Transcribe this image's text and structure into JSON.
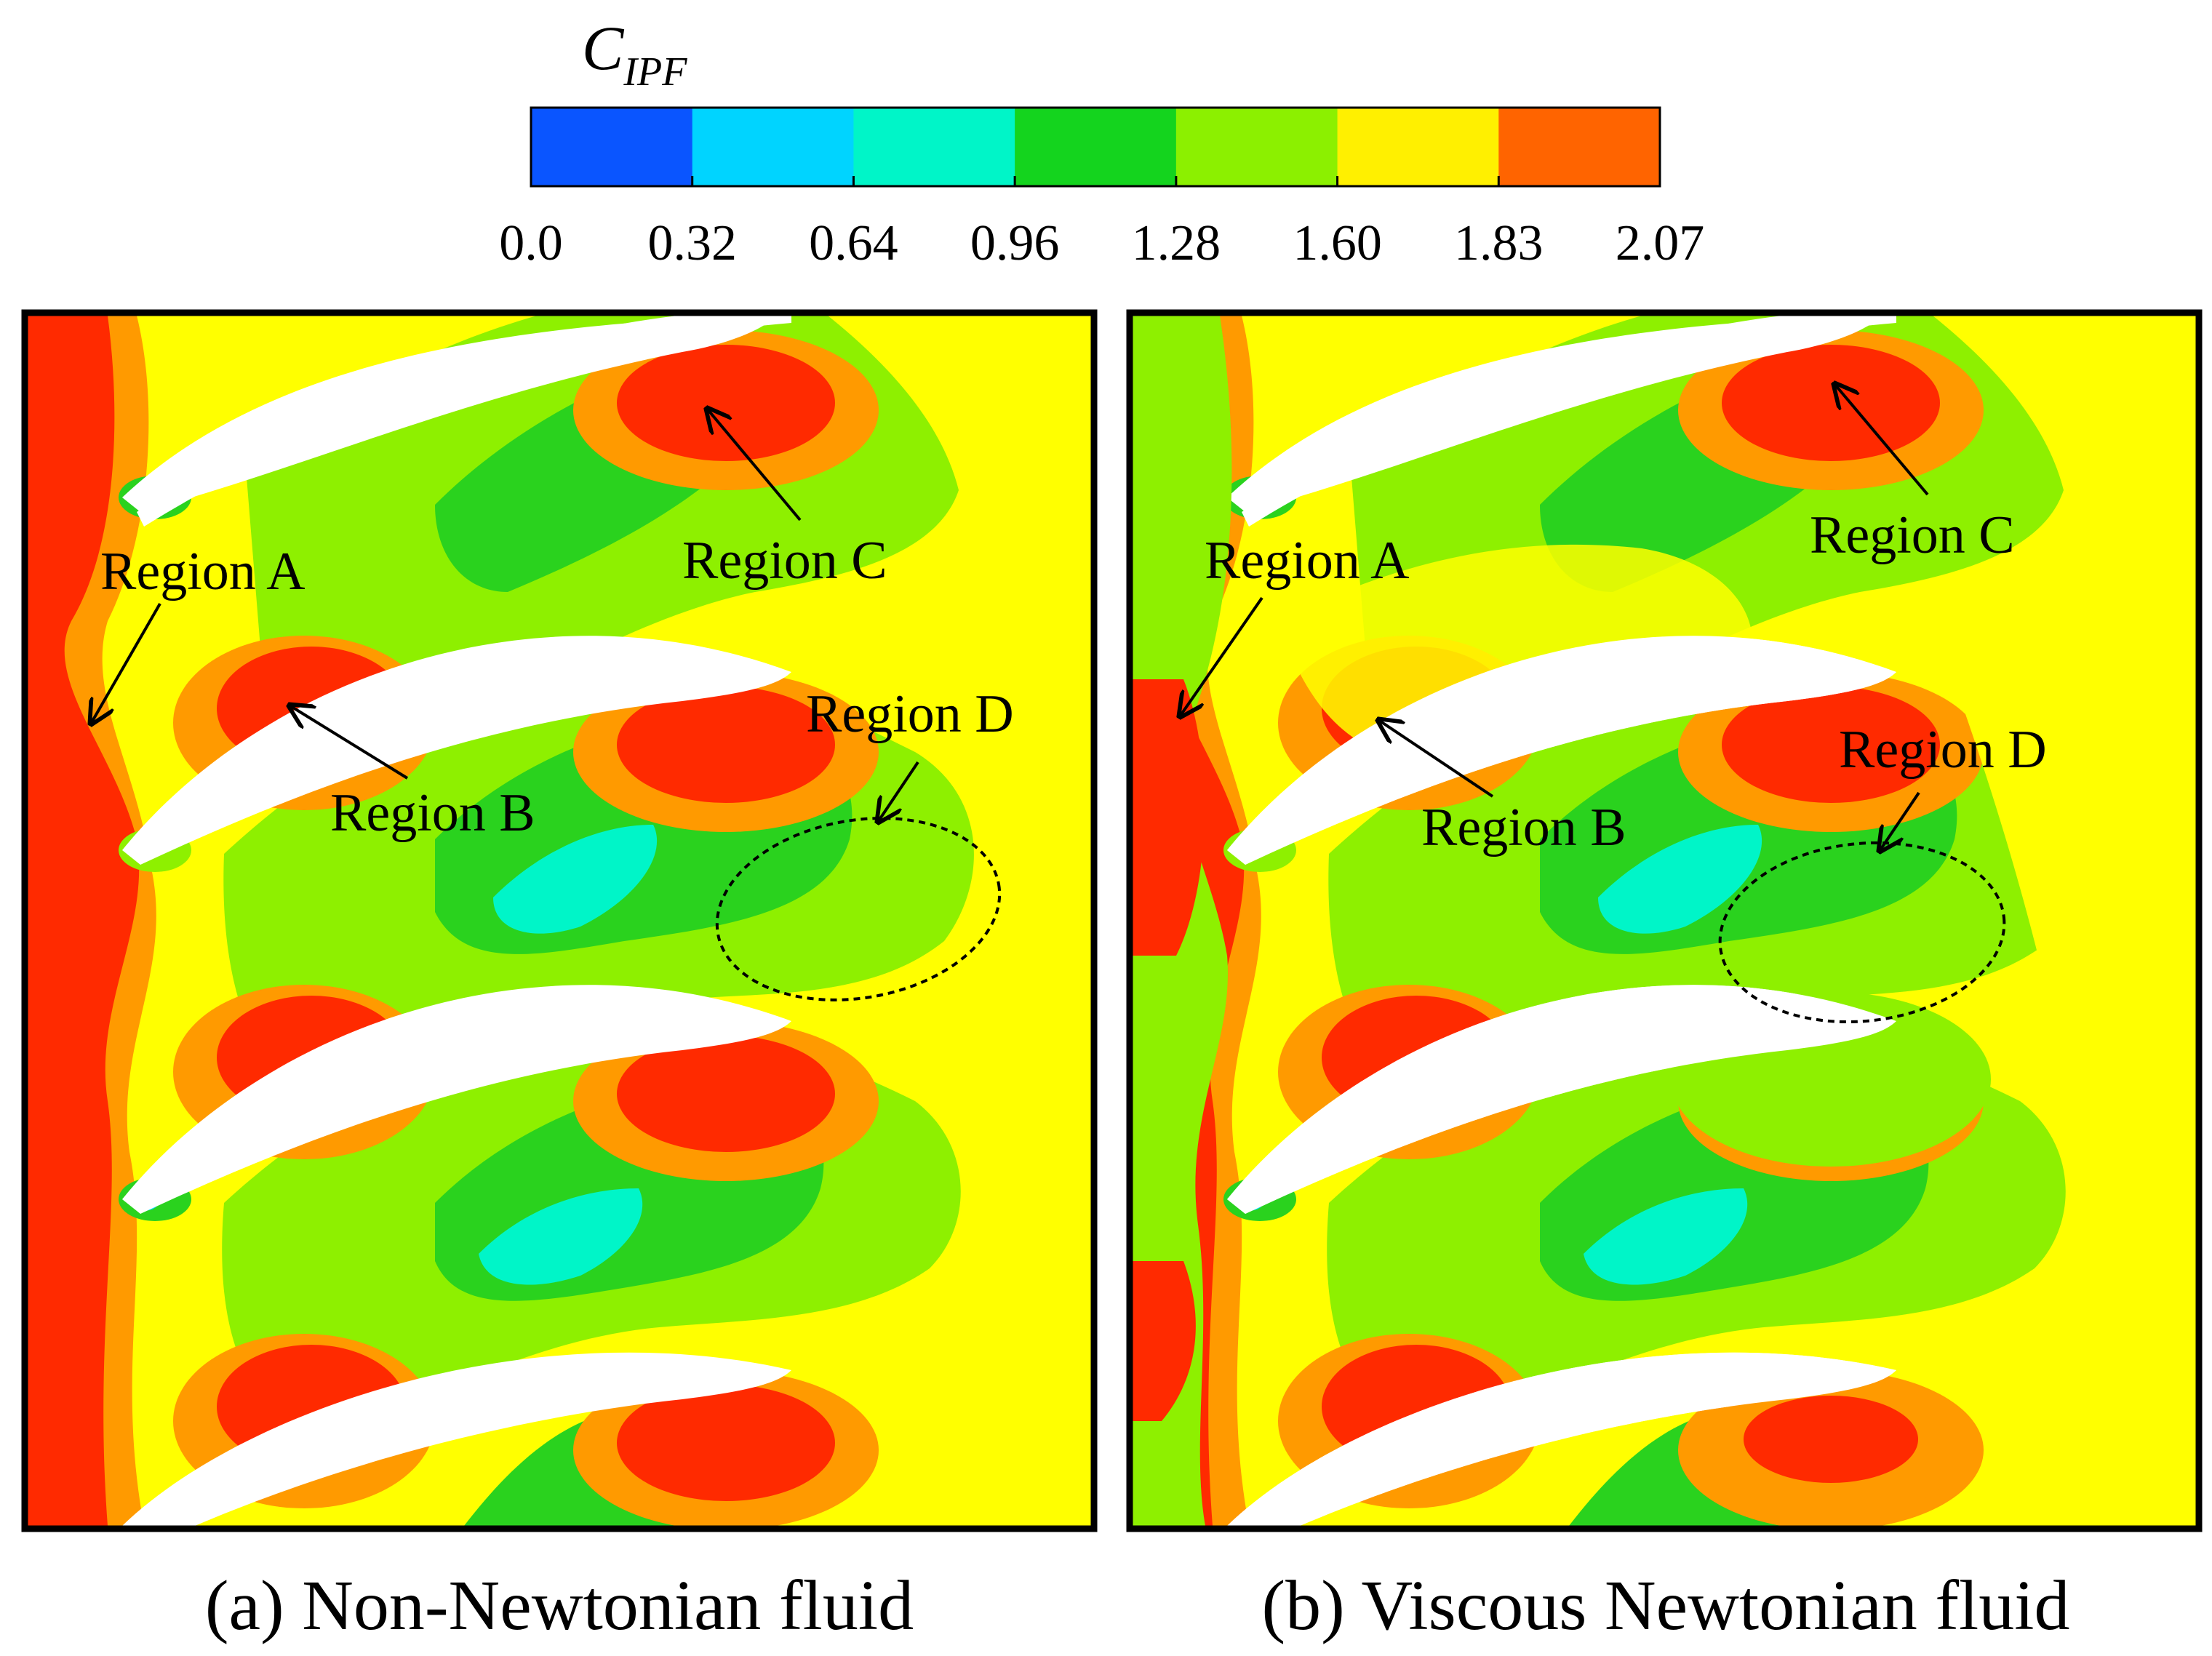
{
  "colorbar": {
    "symbol": "C",
    "subscript": "IPF",
    "ticks": [
      "0.0",
      "0.32",
      "0.64",
      "0.96",
      "1.28",
      "1.60",
      "1.83",
      "2.07"
    ],
    "colors": [
      "#0a55ff",
      "#00d4ff",
      "#00f5c8",
      "#14d41e",
      "#8cf000",
      "#fff000",
      "#ff6400"
    ]
  },
  "panel_colors": {
    "background": "#ffff00",
    "high": "#ff2a00",
    "orange": "#ff9a00",
    "lime": "#8ef000",
    "green": "#2ad21e",
    "cyan": "#00d8ff",
    "blade": "#ffffff"
  },
  "panels": [
    {
      "caption": "(a) Non-Newtonian fluid",
      "labels": {
        "region_a": "Region A",
        "region_b": "Region B",
        "region_c": "Region C",
        "region_d": "Region D"
      }
    },
    {
      "caption": "(b) Viscous Newtonian fluid",
      "labels": {
        "region_a": "Region A",
        "region_b": "Region B",
        "region_c": "Region C",
        "region_d": "Region D"
      }
    }
  ]
}
